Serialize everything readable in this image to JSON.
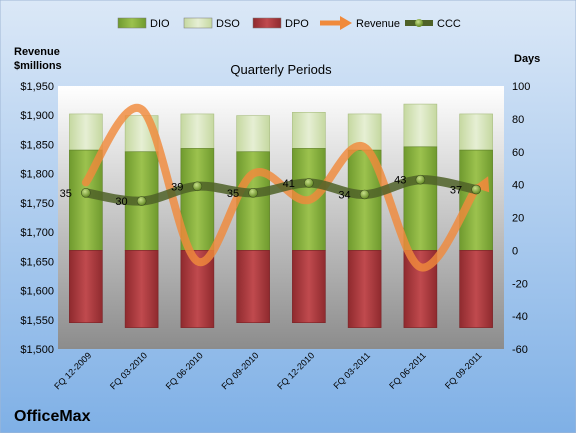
{
  "chart_data": {
    "type": "bar",
    "title": "Quarterly Periods",
    "company": "OfficeMax",
    "left_axis_label": [
      "Revenue",
      "$millions"
    ],
    "right_axis_label": "Days",
    "left_ylim": [
      1500,
      1950
    ],
    "right_ylim": [
      -60,
      100
    ],
    "left_ticks": [
      "$1,500",
      "$1,550",
      "$1,600",
      "$1,650",
      "$1,700",
      "$1,750",
      "$1,800",
      "$1,850",
      "$1,900",
      "$1,950"
    ],
    "right_ticks": [
      "-60",
      "-40",
      "-20",
      "0",
      "20",
      "40",
      "60",
      "80",
      "100"
    ],
    "categories": [
      "FQ 12-2009",
      "FQ 03-2010",
      "FQ 06-2010",
      "FQ 09-2010",
      "FQ 12-2010",
      "FQ 03-2011",
      "FQ 06-2011",
      "FQ 09-2011"
    ],
    "series": [
      {
        "name": "DIO",
        "kind": "stacked-bar",
        "color": "#8cb040",
        "values": [
          61,
          60,
          62,
          60,
          62,
          61,
          63,
          61
        ]
      },
      {
        "name": "DSO",
        "kind": "stacked-bar",
        "color": "#d7e4bd",
        "values": [
          22,
          22,
          21,
          22,
          22,
          22,
          26,
          22
        ]
      },
      {
        "name": "DPO",
        "kind": "stacked-bar-negative",
        "color": "#b03a3e",
        "values": [
          -44,
          -47,
          -47,
          -44,
          -44,
          -47,
          -47,
          -47
        ]
      },
      {
        "name": "Revenue",
        "kind": "line",
        "axis": "left",
        "color": "#f08a3c",
        "values": [
          1785,
          1910,
          1650,
          1800,
          1755,
          1845,
          1640,
          1775
        ]
      },
      {
        "name": "CCC",
        "kind": "line",
        "axis": "right",
        "color": "#4f6228",
        "values": [
          35,
          30,
          39,
          35,
          41,
          34,
          43,
          37
        ]
      }
    ],
    "ccc_labels": [
      "35",
      "30",
      "39",
      "35",
      "41",
      "34",
      "43",
      "37"
    ],
    "legend_position": "top",
    "grid": false
  },
  "colors": {
    "background_top": "#dbe8f7",
    "background_bottom": "#7fb0e6",
    "plot_top": "#ffffff",
    "plot_bottom": "#8c8c8c"
  }
}
